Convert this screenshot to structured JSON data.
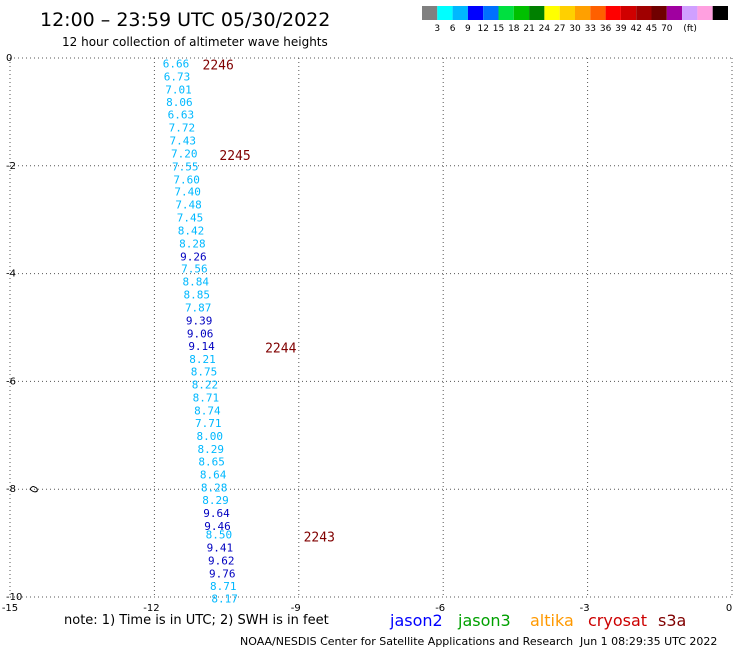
{
  "header": {
    "title": "12:00 – 23:59 UTC 05/30/2022",
    "subtitle": "12 hour collection of altimeter wave heights"
  },
  "color_scale": {
    "colors": [
      "#808080",
      "#00ffff",
      "#00b8ff",
      "#0000ff",
      "#0070ff",
      "#00e040",
      "#00c000",
      "#008000",
      "#ffff00",
      "#ffd000",
      "#ffa000",
      "#ff6000",
      "#ff0000",
      "#d00000",
      "#a00000",
      "#700000",
      "#a000a0",
      "#d0a0ff",
      "#ffa0e0",
      "#000000"
    ],
    "labels": [
      "3",
      "6",
      "9",
      "12",
      "15",
      "18",
      "21",
      "24",
      "27",
      "30",
      "33",
      "36",
      "39",
      "42",
      "45",
      "70",
      "(ft)"
    ]
  },
  "chart_data": {
    "type": "scatter",
    "xlim": [
      -15,
      0
    ],
    "ylim": [
      -10,
      0
    ],
    "x_ticks": [
      "-15",
      "-12",
      "-9",
      "-6",
      "-3",
      "0"
    ],
    "y_ticks": [
      "0",
      "-2",
      "-4",
      "-6",
      "-8",
      "-10"
    ],
    "grid": true,
    "points": [
      {
        "x": -11.55,
        "y": -0.1,
        "value": "6.66",
        "color": "#00b8ff"
      },
      {
        "x": -11.53,
        "y": -0.34,
        "value": "6.73",
        "color": "#00b8ff"
      },
      {
        "x": -11.5,
        "y": -0.58,
        "value": "7.01",
        "color": "#00b8ff"
      },
      {
        "x": -11.48,
        "y": -0.82,
        "value": "8.06",
        "color": "#00b8ff"
      },
      {
        "x": -11.45,
        "y": -1.05,
        "value": "6.63",
        "color": "#00b8ff"
      },
      {
        "x": -11.43,
        "y": -1.29,
        "value": "7.72",
        "color": "#00b8ff"
      },
      {
        "x": -11.41,
        "y": -1.53,
        "value": "7.43",
        "color": "#00b8ff"
      },
      {
        "x": -11.38,
        "y": -1.77,
        "value": "7.20",
        "color": "#00b8ff"
      },
      {
        "x": -11.36,
        "y": -2.01,
        "value": "7.55",
        "color": "#00b8ff"
      },
      {
        "x": -11.33,
        "y": -2.25,
        "value": "7.60",
        "color": "#00b8ff"
      },
      {
        "x": -11.31,
        "y": -2.48,
        "value": "7.40",
        "color": "#00b8ff"
      },
      {
        "x": -11.29,
        "y": -2.72,
        "value": "7.48",
        "color": "#00b8ff"
      },
      {
        "x": -11.26,
        "y": -2.96,
        "value": "7.45",
        "color": "#00b8ff"
      },
      {
        "x": -11.24,
        "y": -3.2,
        "value": "8.42",
        "color": "#00b8ff"
      },
      {
        "x": -11.21,
        "y": -3.44,
        "value": "8.28",
        "color": "#00b8ff"
      },
      {
        "x": -11.19,
        "y": -3.68,
        "value": "9.26",
        "color": "#0000c0"
      },
      {
        "x": -11.17,
        "y": -3.91,
        "value": "7.56",
        "color": "#00b8ff"
      },
      {
        "x": -11.14,
        "y": -4.15,
        "value": "8.84",
        "color": "#00b8ff"
      },
      {
        "x": -11.12,
        "y": -4.39,
        "value": "8.85",
        "color": "#00b8ff"
      },
      {
        "x": -11.09,
        "y": -4.63,
        "value": "7.87",
        "color": "#00b8ff"
      },
      {
        "x": -11.07,
        "y": -4.87,
        "value": "9.39",
        "color": "#0000c0"
      },
      {
        "x": -11.05,
        "y": -5.11,
        "value": "9.06",
        "color": "#0000c0"
      },
      {
        "x": -11.02,
        "y": -5.34,
        "value": "9.14",
        "color": "#0000c0"
      },
      {
        "x": -11.0,
        "y": -5.58,
        "value": "8.21",
        "color": "#00b8ff"
      },
      {
        "x": -10.97,
        "y": -5.82,
        "value": "8.75",
        "color": "#00b8ff"
      },
      {
        "x": -10.95,
        "y": -6.06,
        "value": "8.22",
        "color": "#00b8ff"
      },
      {
        "x": -10.93,
        "y": -6.3,
        "value": "8.71",
        "color": "#00b8ff"
      },
      {
        "x": -10.9,
        "y": -6.54,
        "value": "8.74",
        "color": "#00b8ff"
      },
      {
        "x": -10.88,
        "y": -6.77,
        "value": "7.71",
        "color": "#00b8ff"
      },
      {
        "x": -10.85,
        "y": -7.01,
        "value": "8.00",
        "color": "#00b8ff"
      },
      {
        "x": -10.83,
        "y": -7.25,
        "value": "8.29",
        "color": "#00b8ff"
      },
      {
        "x": -10.81,
        "y": -7.49,
        "value": "8.65",
        "color": "#00b8ff"
      },
      {
        "x": -10.78,
        "y": -7.73,
        "value": "8.64",
        "color": "#00b8ff"
      },
      {
        "x": -10.76,
        "y": -7.97,
        "value": "8.28",
        "color": "#00b8ff"
      },
      {
        "x": -10.73,
        "y": -8.2,
        "value": "8.29",
        "color": "#00b8ff"
      },
      {
        "x": -10.71,
        "y": -8.44,
        "value": "9.64",
        "color": "#0000c0"
      },
      {
        "x": -10.69,
        "y": -8.68,
        "value": "9.46",
        "color": "#0000c0"
      },
      {
        "x": -10.66,
        "y": -8.84,
        "value": "8.50",
        "color": "#00b8ff"
      },
      {
        "x": -10.64,
        "y": -9.08,
        "value": "9.41",
        "color": "#0000c0"
      },
      {
        "x": -10.61,
        "y": -9.32,
        "value": "9.62",
        "color": "#0000c0"
      },
      {
        "x": -10.59,
        "y": -9.56,
        "value": "9.76",
        "color": "#0000c0"
      },
      {
        "x": -10.57,
        "y": -9.8,
        "value": "8.71",
        "color": "#00b8ff"
      },
      {
        "x": -10.54,
        "y": -10.03,
        "value": "8.17",
        "color": "#00b8ff"
      }
    ],
    "pass_times": [
      {
        "x": -11.0,
        "y": -0.12,
        "label": "2246"
      },
      {
        "x": -10.65,
        "y": -1.8,
        "label": "2245"
      },
      {
        "x": -9.7,
        "y": -5.37,
        "label": "2244"
      },
      {
        "x": -8.9,
        "y": -8.88,
        "label": "2243"
      }
    ],
    "island": {
      "x": -14.5,
      "y": -8.0
    }
  },
  "footer": {
    "note": "note: 1) Time is in UTC; 2) SWH is in feet",
    "satellites": [
      {
        "name": "jason2",
        "color": "#0000ff"
      },
      {
        "name": "jason3",
        "color": "#00a000"
      },
      {
        "name": "altika",
        "color": "#ff9900"
      },
      {
        "name": "cryosat",
        "color": "#cc0000"
      },
      {
        "name": "s3a",
        "color": "#800000"
      }
    ],
    "credit": "NOAA/NESDIS Center for Satellite Applications and Research",
    "timestamp": "Jun  1 08:29:35 UTC 2022"
  }
}
